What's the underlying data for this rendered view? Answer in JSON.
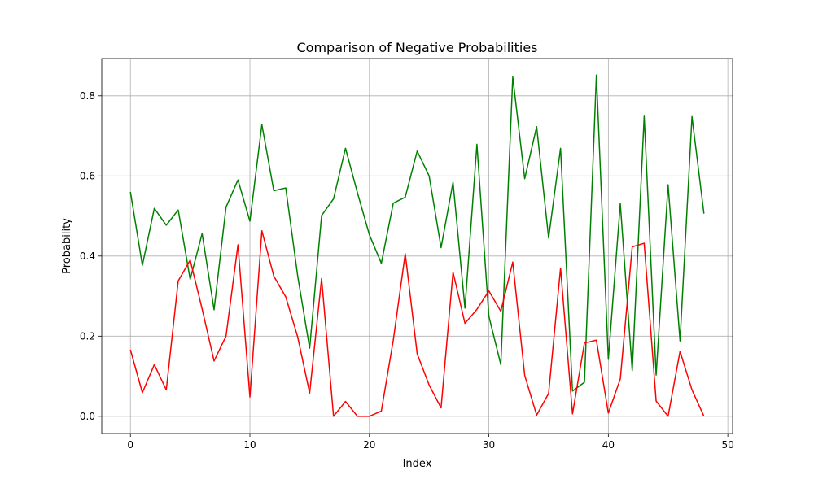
{
  "chart_data": {
    "type": "line",
    "title": "Comparison of Negative Probabilities",
    "xlabel": "Index",
    "ylabel": "Probability",
    "xlim": [
      -2.4,
      50.4
    ],
    "ylim": [
      -0.043,
      0.893
    ],
    "xticks": [
      0,
      10,
      20,
      30,
      40,
      50
    ],
    "yticks": [
      0.0,
      0.2,
      0.4,
      0.6,
      0.8
    ],
    "ytick_labels": [
      "0.0",
      "0.2",
      "0.4",
      "0.6",
      "0.8"
    ],
    "grid": true,
    "x": [
      0,
      1,
      2,
      3,
      4,
      5,
      6,
      7,
      8,
      9,
      10,
      11,
      12,
      13,
      14,
      15,
      16,
      17,
      18,
      19,
      20,
      21,
      22,
      23,
      24,
      25,
      26,
      27,
      28,
      29,
      30,
      31,
      32,
      33,
      34,
      35,
      36,
      37,
      38,
      39,
      40,
      41,
      42,
      43,
      44,
      45,
      46,
      47,
      48
    ],
    "series": [
      {
        "color": "#008000",
        "values": [
          0.56,
          0.377,
          0.519,
          0.477,
          0.515,
          0.342,
          0.456,
          0.266,
          0.522,
          0.59,
          0.487,
          0.728,
          0.563,
          0.57,
          0.35,
          0.17,
          0.501,
          0.543,
          0.669,
          0.558,
          0.453,
          0.382,
          0.532,
          0.547,
          0.662,
          0.6,
          0.421,
          0.584,
          0.27,
          0.679,
          0.25,
          0.129,
          0.847,
          0.593,
          0.723,
          0.445,
          0.669,
          0.063,
          0.085,
          0.852,
          0.142,
          0.531,
          0.114,
          0.749,
          0.103,
          0.578,
          0.188,
          0.748,
          0.506
        ]
      },
      {
        "color": "#ff0000",
        "values": [
          0.166,
          0.059,
          0.129,
          0.066,
          0.338,
          0.39,
          0.268,
          0.138,
          0.2,
          0.428,
          0.048,
          0.463,
          0.35,
          0.298,
          0.198,
          0.058,
          0.344,
          0.0,
          0.037,
          0.0,
          0.0,
          0.013,
          0.19,
          0.406,
          0.156,
          0.078,
          0.021,
          0.36,
          0.232,
          0.267,
          0.313,
          0.262,
          0.385,
          0.102,
          0.003,
          0.057,
          0.37,
          0.006,
          0.183,
          0.19,
          0.008,
          0.093,
          0.423,
          0.432,
          0.038,
          0.0,
          0.162,
          0.066,
          0.0
        ]
      }
    ]
  }
}
